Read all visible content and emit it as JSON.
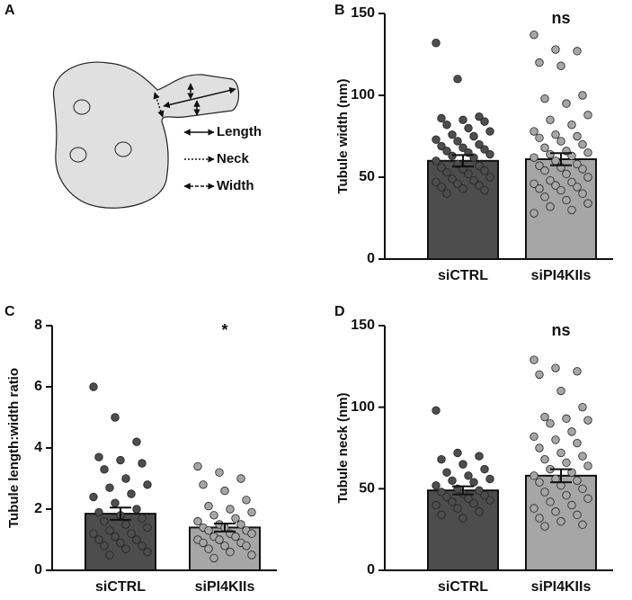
{
  "diagram": {
    "label": "A",
    "legend": [
      "Length",
      "Neck",
      "Width"
    ]
  },
  "chart_data": [
    {
      "type": "bar",
      "label": "B",
      "ylabel": "Tubule width (nm)",
      "annotation": "ns",
      "categories": [
        "siCTRL",
        "siPI4KIIs"
      ],
      "values": [
        60,
        61
      ],
      "errors": [
        3.5,
        3.7
      ],
      "colors": [
        "#4d4d4d",
        "#a6a6a6"
      ],
      "points": [
        [
          132,
          110,
          87,
          86,
          85,
          84,
          82,
          80,
          78,
          76,
          75,
          73,
          72,
          70,
          69,
          68,
          67,
          66,
          65,
          64,
          63,
          62,
          60,
          58,
          57,
          56,
          55,
          54,
          53,
          52,
          50,
          49,
          48,
          47,
          46,
          45,
          44,
          43,
          42,
          40
        ],
        [
          137,
          128,
          127,
          120,
          118,
          100,
          98,
          95,
          88,
          85,
          82,
          78,
          76,
          75,
          74,
          72,
          70,
          68,
          66,
          65,
          64,
          63,
          62,
          60,
          58,
          57,
          56,
          55,
          54,
          52,
          50,
          48,
          47,
          46,
          45,
          44,
          43,
          42,
          40,
          38,
          36,
          34,
          32,
          30,
          28
        ]
      ],
      "ylim": [
        0,
        150
      ],
      "yticks": [
        0,
        50,
        100,
        150
      ]
    },
    {
      "type": "bar",
      "label": "C",
      "ylabel": "Tubule length:width ratio",
      "annotation": "*",
      "categories": [
        "siCTRL",
        "siPI4KIIs"
      ],
      "values": [
        1.85,
        1.4
      ],
      "errors": [
        0.2,
        0.13
      ],
      "colors": [
        "#4d4d4d",
        "#a6a6a6"
      ],
      "points": [
        [
          6.0,
          5.0,
          4.2,
          3.7,
          3.6,
          3.5,
          3.3,
          3.0,
          2.8,
          2.7,
          2.5,
          2.4,
          2.2,
          2.0,
          1.9,
          1.8,
          1.7,
          1.6,
          1.5,
          1.4,
          1.3,
          1.2,
          1.2,
          1.1,
          1.0,
          1.0,
          0.9,
          0.8,
          0.8,
          0.7,
          0.6,
          0.5
        ],
        [
          3.4,
          3.2,
          3.0,
          2.8,
          2.6,
          2.3,
          2.1,
          2.0,
          1.9,
          1.8,
          1.7,
          1.6,
          1.5,
          1.5,
          1.4,
          1.4,
          1.3,
          1.3,
          1.2,
          1.2,
          1.1,
          1.1,
          1.0,
          1.0,
          0.9,
          0.9,
          0.8,
          0.8,
          0.7,
          0.6,
          0.5,
          0.4
        ]
      ],
      "ylim": [
        0,
        8
      ],
      "yticks": [
        0,
        2,
        4,
        6,
        8
      ]
    },
    {
      "type": "bar",
      "label": "D",
      "ylabel": "Tubule neck (nm)",
      "annotation": "ns",
      "categories": [
        "siCTRL",
        "siPI4KIIs"
      ],
      "values": [
        49,
        58
      ],
      "errors": [
        2.5,
        4
      ],
      "colors": [
        "#4d4d4d",
        "#a6a6a6"
      ],
      "points": [
        [
          98,
          72,
          70,
          68,
          65,
          62,
          60,
          58,
          56,
          55,
          54,
          52,
          50,
          49,
          48,
          47,
          46,
          45,
          44,
          43,
          42,
          41,
          40,
          38,
          36,
          34,
          32
        ],
        [
          129,
          124,
          122,
          120,
          110,
          100,
          94,
          93,
          92,
          90,
          85,
          82,
          80,
          78,
          75,
          72,
          70,
          68,
          66,
          64,
          62,
          60,
          58,
          56,
          55,
          54,
          52,
          50,
          48,
          46,
          44,
          42,
          40,
          38,
          36,
          34,
          32,
          30,
          28,
          27
        ]
      ],
      "ylim": [
        0,
        150
      ],
      "yticks": [
        0,
        50,
        100,
        150
      ]
    }
  ]
}
